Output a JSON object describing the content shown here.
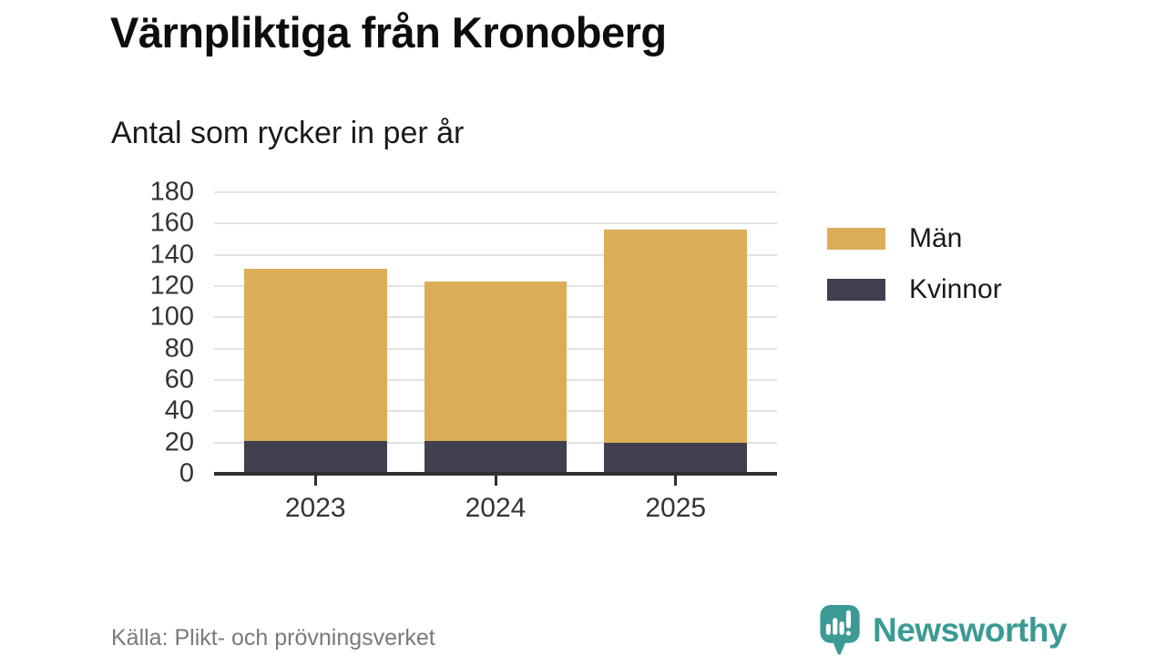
{
  "header": {
    "title": "Värnpliktiga från Kronoberg",
    "subtitle": "Antal som rycker in per år"
  },
  "chart_data": {
    "type": "bar",
    "stacked": true,
    "title": "Värnpliktiga från Kronoberg",
    "subtitle": "Antal som rycker in per år",
    "categories": [
      "2023",
      "2024",
      "2025"
    ],
    "series": [
      {
        "name": "Män",
        "color": "#DBAD58",
        "values": [
          110,
          102,
          136
        ]
      },
      {
        "name": "Kvinnor",
        "color": "#413F50",
        "values": [
          21,
          21,
          20
        ]
      }
    ],
    "stack_order_bottom_to_top": [
      "Kvinnor",
      "Män"
    ],
    "stacked_totals": [
      131,
      123,
      156
    ],
    "ylim": [
      0,
      180
    ],
    "y_ticks": [
      0,
      20,
      40,
      60,
      80,
      100,
      120,
      140,
      160,
      180
    ],
    "grid": true,
    "legend_position": "right"
  },
  "footer": {
    "source": "Källa: Plikt- och prövningsverket",
    "brand": "Newsworthy"
  },
  "colors": {
    "men": "#DBAD58",
    "women": "#413F50",
    "brand_teal": "#3B9A94",
    "axis": "#2F2F2F",
    "grid": "#E2E2E2",
    "text": "#1A1A1A",
    "muted": "#7A7A7A",
    "background": "#FFFFFF"
  }
}
